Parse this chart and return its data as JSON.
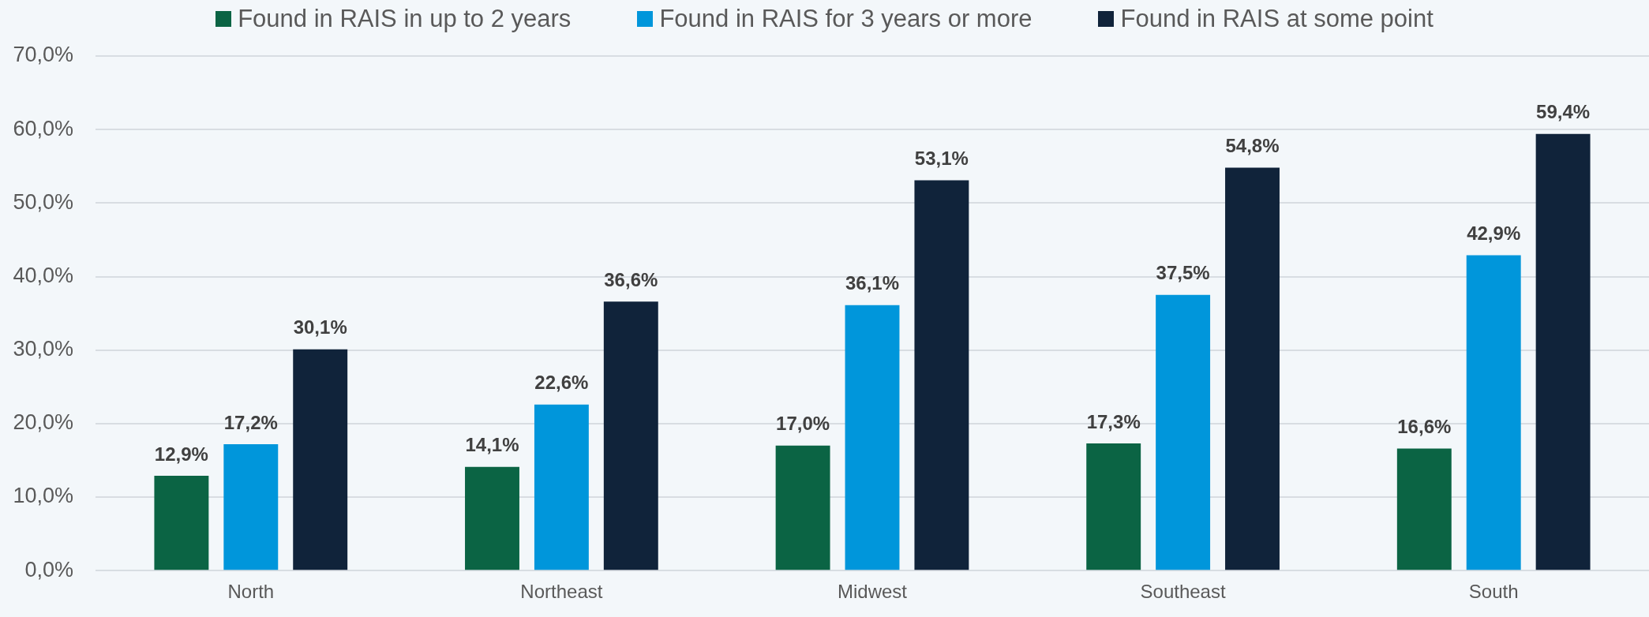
{
  "chart_data": {
    "type": "bar",
    "categories": [
      "North",
      "Northeast",
      "Midwest",
      "Southeast",
      "South"
    ],
    "series": [
      {
        "name": "Found in RAIS in up to 2 years",
        "color": "#0b6444",
        "values": [
          12.9,
          14.1,
          17.0,
          17.3,
          16.6
        ],
        "value_labels": [
          "12,9%",
          "14,1%",
          "17,0%",
          "17,3%",
          "16,6%"
        ]
      },
      {
        "name": "Found in RAIS for 3 years or more",
        "color": "#0096db",
        "values": [
          17.2,
          22.6,
          36.1,
          37.5,
          42.9
        ],
        "value_labels": [
          "17,2%",
          "22,6%",
          "36,1%",
          "37,5%",
          "42,9%"
        ]
      },
      {
        "name": "Found in RAIS at some point",
        "color": "#10233a",
        "values": [
          30.1,
          36.6,
          53.1,
          54.8,
          59.4
        ],
        "value_labels": [
          "30,1%",
          "36,6%",
          "53,1%",
          "54,8%",
          "59,4%"
        ]
      }
    ],
    "ylim": [
      0,
      70
    ],
    "yticks": [
      {
        "value": 0,
        "label": "0,0%"
      },
      {
        "value": 10,
        "label": "10,0%"
      },
      {
        "value": 20,
        "label": "20,0%"
      },
      {
        "value": 30,
        "label": "30,0%"
      },
      {
        "value": 40,
        "label": "40,0%"
      },
      {
        "value": 50,
        "label": "50,0%"
      },
      {
        "value": 60,
        "label": "60,0%"
      },
      {
        "value": 70,
        "label": "70,0%"
      }
    ],
    "grid": "y",
    "legend": "top"
  }
}
